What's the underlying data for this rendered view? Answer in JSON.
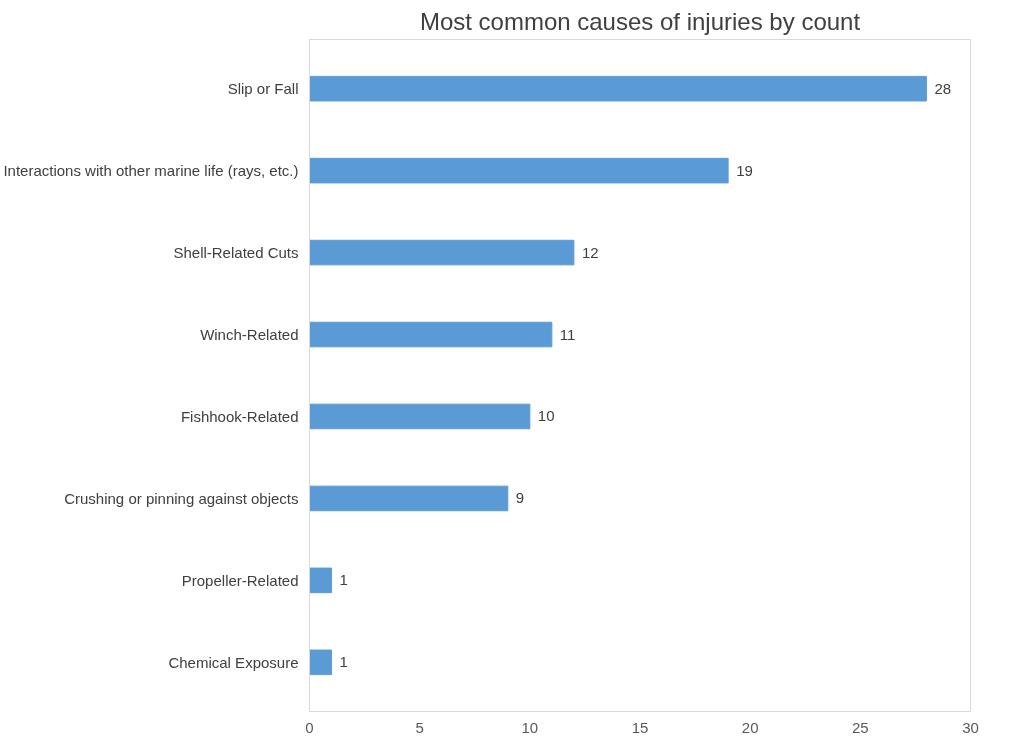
{
  "chart_data": {
    "type": "bar",
    "orientation": "horizontal",
    "title": "Most common causes of injuries by count",
    "categories": [
      "Slip or Fall",
      "Interactions with other marine life (rays, etc.)",
      "Shell-Related Cuts",
      "Winch-Related",
      "Fishhook-Related",
      "Crushing or pinning against objects",
      "Propeller-Related",
      "Chemical Exposure"
    ],
    "values": [
      28,
      19,
      12,
      11,
      10,
      9,
      1,
      1
    ],
    "color": "#5b9bd5",
    "xlim": [
      0,
      30
    ],
    "xticks": [
      0,
      5,
      10,
      15,
      20,
      25,
      30
    ],
    "grid": false,
    "data_labels": true
  }
}
